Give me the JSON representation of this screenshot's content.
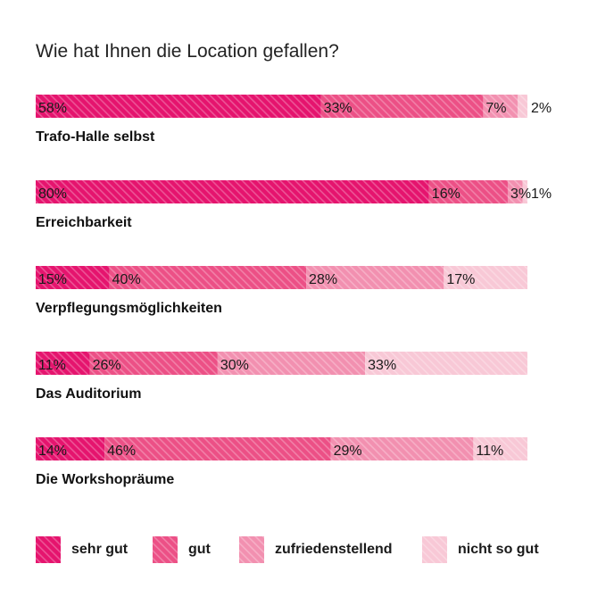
{
  "chart_data": {
    "type": "bar",
    "orientation": "horizontal",
    "stacked": true,
    "percent": true,
    "title": "Wie hat Ihnen die Location gefallen?",
    "categories": [
      "Trafo-Halle selbst",
      "Erreichbarkeit",
      "Verpflegungsmöglichkeiten",
      "Das Auditorium",
      "Die Workshopräume"
    ],
    "series": [
      {
        "name": "sehr gut",
        "values": [
          58,
          80,
          15,
          11,
          14
        ],
        "color": "#e5146e"
      },
      {
        "name": "gut",
        "values": [
          33,
          16,
          40,
          26,
          46
        ],
        "color": "#ec5086"
      },
      {
        "name": "zufriedenstellend",
        "values": [
          7,
          3,
          28,
          30,
          29
        ],
        "color": "#f290b0"
      },
      {
        "name": "nicht so gut",
        "values": [
          2,
          1,
          17,
          33,
          11
        ],
        "color": "#f8c8d6"
      }
    ],
    "value_suffix": "%",
    "legend_position": "bottom",
    "grid": false,
    "xlim": [
      0,
      100
    ]
  }
}
